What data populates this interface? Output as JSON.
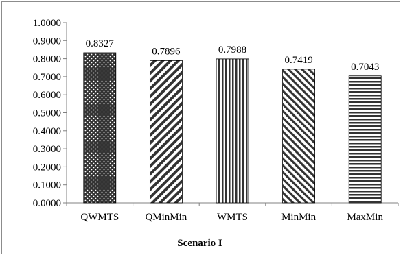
{
  "chart_data": {
    "type": "bar",
    "categories": [
      "QWMTS",
      "QMinMin",
      "WMTS",
      "MinMin",
      "MaxMin"
    ],
    "values": [
      0.8327,
      0.7896,
      0.7988,
      0.7419,
      0.7043
    ],
    "data_labels": [
      "0.8327",
      "0.7896",
      "0.7988",
      "0.7419",
      "0.7043"
    ],
    "patterns": [
      "dots",
      "diagonal-down",
      "vertical-stripes",
      "diagonal-up",
      "horizontal-stripes"
    ],
    "xlabel": "Scenario I",
    "ylabel": "",
    "ylim": [
      0,
      1
    ],
    "yticks": [
      "0.0000",
      "0.1000",
      "0.2000",
      "0.3000",
      "0.4000",
      "0.5000",
      "0.6000",
      "0.7000",
      "0.8000",
      "0.9000",
      "1.0000"
    ],
    "grid": false,
    "legend": "none",
    "colors": {
      "bar_fill": "#333333",
      "bar_pattern": "#ffffff",
      "axis": "#808080",
      "frame": "#8c8c8c",
      "text": "#000000"
    }
  }
}
